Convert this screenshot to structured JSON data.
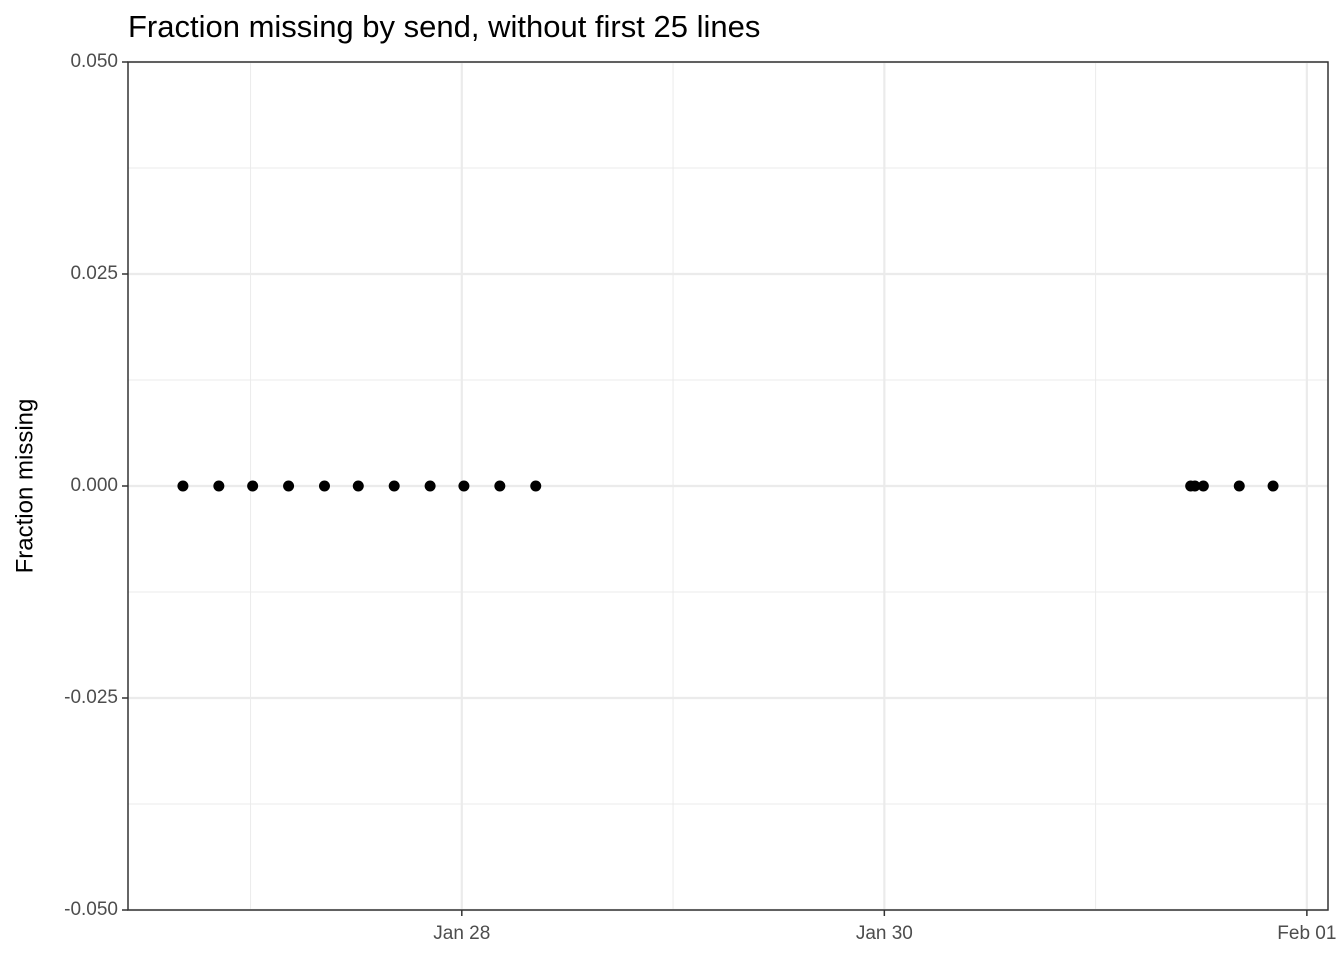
{
  "chart_data": {
    "type": "scatter",
    "title": "Fraction missing by send, without first 25 lines",
    "y_label": "Fraction missing",
    "x": [
      26.68,
      26.85,
      27.01,
      27.18,
      27.35,
      27.51,
      27.68,
      27.85,
      28.01,
      28.18,
      28.35,
      31.45,
      31.47,
      31.51,
      31.68,
      31.84
    ],
    "values": [
      0,
      0,
      0,
      0,
      0,
      0,
      0,
      0,
      0,
      0,
      0,
      0,
      0,
      0,
      0,
      0
    ],
    "color": "#000000",
    "xlim": [
      26.42,
      32.1
    ],
    "xticks": [
      {
        "value": 28,
        "label": "Jan 28"
      },
      {
        "value": 30,
        "label": "Jan 30"
      },
      {
        "value": 32,
        "label": "Feb 01"
      }
    ],
    "ylim": [
      -0.05,
      0.05
    ],
    "yticks": [
      {
        "value": -0.05,
        "label": "-0.050"
      },
      {
        "value": -0.025,
        "label": "-0.025"
      },
      {
        "value": 0,
        "label": "0.000"
      },
      {
        "value": 0.025,
        "label": "0.025"
      },
      {
        "value": 0.05,
        "label": "0.050"
      }
    ],
    "grid": true
  }
}
